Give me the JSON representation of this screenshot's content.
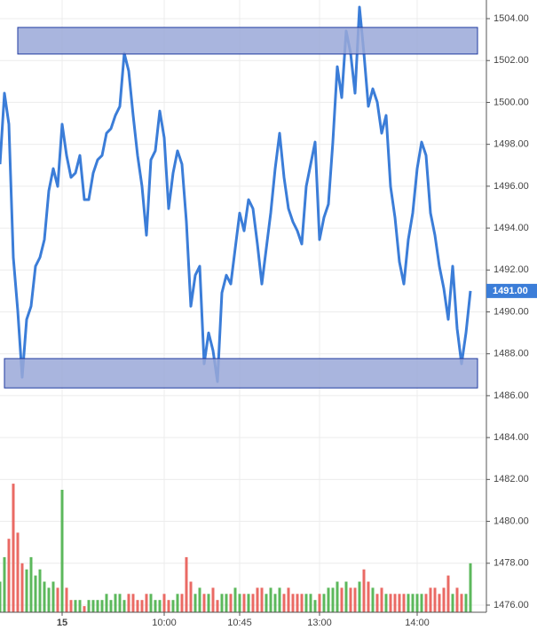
{
  "chart_data": {
    "type": "line",
    "categories": [
      null,
      null,
      null,
      null,
      null,
      null,
      null,
      null,
      null,
      null,
      null,
      null,
      null,
      null,
      "15",
      null,
      null,
      null,
      null,
      null,
      null,
      null,
      null,
      null,
      null,
      null,
      null,
      null,
      null,
      null,
      null,
      null,
      null,
      null,
      null,
      null,
      null,
      "10:00",
      null,
      null,
      null,
      null,
      null,
      null,
      null,
      null,
      null,
      null,
      null,
      null,
      null,
      null,
      null,
      null,
      "10:45",
      null,
      null,
      null,
      null,
      null,
      null,
      null,
      null,
      null,
      null,
      null,
      null,
      null,
      null,
      null,
      null,
      null,
      "13:00",
      null,
      null,
      null,
      null,
      null,
      null,
      null,
      null,
      null,
      null,
      null,
      null,
      null,
      null,
      null,
      null,
      null,
      null,
      null,
      null,
      null,
      "14:00",
      null,
      null,
      null,
      null,
      null,
      null,
      null,
      null,
      null,
      null,
      null,
      null
    ],
    "series": [
      {
        "color": "#3b7dd8",
        "values": [
          1497.05,
          1500.44,
          1498.96,
          1492.6,
          1490.06,
          1486.88,
          1489.64,
          1490.27,
          1492.18,
          1492.6,
          1493.45,
          1495.78,
          1496.84,
          1495.99,
          1498.96,
          1497.47,
          1496.42,
          1496.63,
          1497.47,
          1495.36,
          1495.36,
          1496.63,
          1497.26,
          1497.47,
          1498.53,
          1498.75,
          1499.38,
          1499.81,
          1502.35,
          1501.5,
          1499.38,
          1497.47,
          1495.99,
          1493.66,
          1497.26,
          1497.69,
          1499.59,
          1498.32,
          1494.93,
          1496.63,
          1497.69,
          1497.05,
          1494.3,
          1490.27,
          1491.75,
          1492.18,
          1487.52,
          1489.0,
          1488.15,
          1486.67,
          1490.91,
          1491.75,
          1491.33,
          1493.03,
          1494.72,
          1493.87,
          1495.36,
          1494.93,
          1493.24,
          1491.33,
          1493.03,
          1494.72,
          1496.84,
          1498.53,
          1496.42,
          1494.93,
          1494.3,
          1493.87,
          1493.24,
          1495.99,
          1497.05,
          1498.11,
          1493.45,
          1494.51,
          1495.14,
          1498.11,
          1501.71,
          1500.23,
          1503.41,
          1502.35,
          1500.44,
          1504.55,
          1502.35,
          1499.81,
          1500.65,
          1500.02,
          1498.53,
          1499.38,
          1495.99,
          1494.51,
          1492.39,
          1491.33,
          1493.45,
          1494.72,
          1496.84,
          1498.11,
          1497.47,
          1494.72,
          1493.66,
          1492.18,
          1491.12,
          1489.64,
          1492.18,
          1489.21,
          1487.52,
          1489.0,
          1491.0
        ]
      },
      {
        "type": "bar",
        "axis": "y2",
        "up_color": "#5cb85c",
        "down_color": "#ea6a64",
        "values": [
          5,
          9,
          12,
          21,
          13,
          8,
          7,
          9,
          6,
          7,
          5,
          4,
          5,
          4,
          20,
          4,
          2,
          2,
          2,
          1,
          2,
          2,
          2,
          2,
          3,
          2,
          3,
          3,
          2,
          3,
          3,
          2,
          2,
          3,
          3,
          2,
          2,
          3,
          2,
          2,
          3,
          3,
          9,
          5,
          3,
          4,
          3,
          3,
          4,
          2,
          3,
          3,
          3,
          4,
          3,
          3,
          3,
          3,
          4,
          4,
          3,
          4,
          3,
          4,
          3,
          4,
          3,
          3,
          3,
          3,
          3,
          2,
          3,
          3,
          4,
          4,
          5,
          4,
          5,
          4,
          4,
          5,
          7,
          5,
          4,
          3,
          4,
          3,
          3,
          3,
          3,
          3,
          3,
          3,
          3,
          3,
          3,
          4,
          4,
          3,
          4,
          6,
          3,
          4,
          3,
          3,
          8
        ]
      }
    ],
    "ylim": [
      1475.66,
      1504.89
    ],
    "yticks": [
      {
        "value": 1476,
        "label": "1476.00"
      },
      {
        "value": 1478,
        "label": "1478.00"
      },
      {
        "value": 1480,
        "label": "1480.00"
      },
      {
        "value": 1482,
        "label": "1482.00"
      },
      {
        "value": 1484,
        "label": "1484.00"
      },
      {
        "value": 1486,
        "label": "1486.00"
      },
      {
        "value": 1488,
        "label": "1488.00"
      },
      {
        "value": 1490,
        "label": "1490.00"
      },
      {
        "value": 1492,
        "label": "1492.00"
      },
      {
        "value": 1494,
        "label": "1494.00"
      },
      {
        "value": 1496,
        "label": "1496.00"
      },
      {
        "value": 1498,
        "label": "1498.00"
      },
      {
        "value": 1500,
        "label": "1500.00"
      },
      {
        "value": 1502,
        "label": "1502.00"
      },
      {
        "value": 1504,
        "label": "1504.00"
      }
    ],
    "y2lim": [
      0,
      100
    ],
    "grid": true,
    "zones": [
      {
        "start": 4,
        "low": 1502.31,
        "high": 1503.58,
        "color": "#9aa8d8"
      },
      {
        "start": 1,
        "low": 1486.37,
        "high": 1487.77,
        "color": "#9aa8d8"
      }
    ],
    "last_price": {
      "value": 1491,
      "label": "1491.00"
    }
  }
}
